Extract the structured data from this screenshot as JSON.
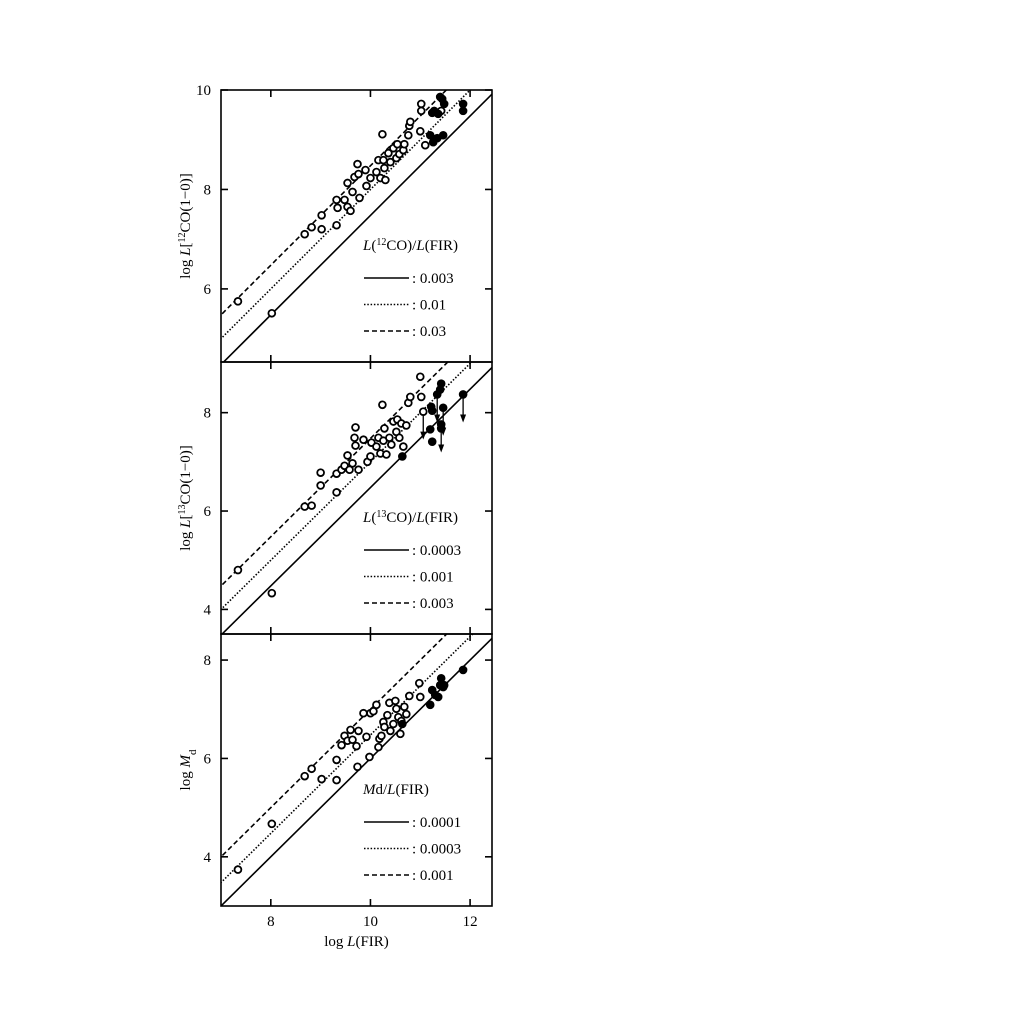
{
  "chart_data": [
    {
      "type": "scatter",
      "ylabel": [
        {
          "text": "log "
        },
        {
          "text": "L",
          "italic": true
        },
        {
          "text": "[",
          "italic": false
        },
        {
          "text": "12",
          "sup": true
        },
        {
          "text": "CO(1−0)]"
        }
      ],
      "xlim": [
        7,
        12.44
      ],
      "ylim": [
        4.53,
        10
      ],
      "xticks": [
        8,
        10,
        12
      ],
      "xtick_labels": false,
      "yticks": [
        6,
        8,
        10
      ],
      "legend_title": [
        {
          "text": "L",
          "italic": true
        },
        {
          "text": "("
        },
        {
          "text": "12",
          "sup": true
        },
        {
          "text": "CO)/"
        },
        {
          "text": "L",
          "italic": true
        },
        {
          "text": "(FIR)"
        }
      ],
      "lines": [
        {
          "value": 0.003,
          "label": ": 0.003",
          "dash": "solid"
        },
        {
          "value": 0.01,
          "label": ": 0.01",
          "dash": "dotted"
        },
        {
          "value": 0.03,
          "label": ": 0.03",
          "dash": "dashed"
        }
      ],
      "series": [
        {
          "filled": false,
          "x": [
            7.34,
            8.02,
            8.68,
            8.82,
            9.02,
            9.02,
            9.32,
            9.32,
            9.34,
            9.48,
            9.54,
            9.54,
            9.6,
            9.64,
            9.68,
            9.74,
            9.76,
            9.78,
            9.9,
            9.92,
            10.0,
            10.12,
            10.16,
            10.2,
            10.24,
            10.26,
            10.28,
            10.3,
            10.36,
            10.4,
            10.46,
            10.52,
            10.54,
            10.58,
            10.66,
            10.68,
            10.76,
            10.78,
            10.8,
            11.02,
            11.02,
            11.0,
            11.1,
            11.42
          ],
          "y": [
            5.75,
            5.51,
            7.1,
            7.24,
            7.48,
            7.2,
            7.28,
            7.79,
            7.63,
            7.79,
            8.13,
            7.65,
            7.57,
            7.95,
            8.25,
            8.51,
            8.31,
            7.83,
            8.39,
            8.07,
            8.23,
            8.35,
            8.59,
            8.23,
            9.11,
            8.59,
            8.43,
            8.19,
            8.73,
            8.55,
            8.83,
            8.63,
            8.91,
            8.71,
            8.79,
            8.91,
            9.09,
            9.28,
            9.36,
            9.72,
            9.58,
            9.17,
            8.89,
            9.58
          ]
        },
        {
          "filled": true,
          "x": [
            11.2,
            11.24,
            11.28,
            11.26,
            11.34,
            11.4,
            11.44,
            11.46,
            11.48,
            11.86,
            11.86,
            11.36
          ],
          "y": [
            9.09,
            9.54,
            9.58,
            8.95,
            9.03,
            9.86,
            9.82,
            9.09,
            9.72,
            9.72,
            9.58,
            9.52
          ]
        }
      ]
    },
    {
      "type": "scatter",
      "ylabel": [
        {
          "text": "log "
        },
        {
          "text": "L",
          "italic": true
        },
        {
          "text": "["
        },
        {
          "text": "13",
          "sup": true
        },
        {
          "text": "CO(1−0)]"
        }
      ],
      "xlim": [
        7,
        12.44
      ],
      "ylim": [
        3.5,
        9.03
      ],
      "xticks": [
        8,
        10,
        12
      ],
      "xtick_labels": false,
      "yticks": [
        4,
        6,
        8
      ],
      "legend_title": [
        {
          "text": "L",
          "italic": true
        },
        {
          "text": "("
        },
        {
          "text": "13",
          "sup": true
        },
        {
          "text": "CO)/"
        },
        {
          "text": "L",
          "italic": true
        },
        {
          "text": "(FIR)"
        }
      ],
      "lines": [
        {
          "value": 0.0003,
          "label": ": 0.0003",
          "dash": "solid"
        },
        {
          "value": 0.001,
          "label": ": 0.001",
          "dash": "dotted"
        },
        {
          "value": 0.003,
          "label": ": 0.003",
          "dash": "dashed"
        }
      ],
      "series": [
        {
          "filled": false,
          "x": [
            7.34,
            8.02,
            8.68,
            8.82,
            9.0,
            9.0,
            9.32,
            9.32,
            9.42,
            9.48,
            9.54,
            9.58,
            9.64,
            9.68,
            9.7,
            9.7,
            9.76,
            9.86,
            9.94,
            10.0,
            10.02,
            10.12,
            10.16,
            10.2,
            10.24,
            10.26,
            10.28,
            10.32,
            10.38,
            10.42,
            10.46,
            10.52,
            10.54,
            10.58,
            10.62,
            10.66,
            10.72,
            10.76,
            10.8,
            11.0,
            11.02,
            11.06
          ],
          "y": [
            4.8,
            4.33,
            6.09,
            6.11,
            6.52,
            6.78,
            6.38,
            6.76,
            6.84,
            6.92,
            7.13,
            6.84,
            6.97,
            7.49,
            7.7,
            7.33,
            6.84,
            7.45,
            7.0,
            7.11,
            7.39,
            7.31,
            7.49,
            7.17,
            8.16,
            7.43,
            7.68,
            7.15,
            7.49,
            7.35,
            7.82,
            7.61,
            7.86,
            7.49,
            7.78,
            7.31,
            7.74,
            8.2,
            8.32,
            8.73,
            8.32,
            8.02
          ],
          "upper_limit": [
            false,
            false,
            false,
            false,
            false,
            false,
            false,
            false,
            false,
            false,
            false,
            false,
            false,
            false,
            false,
            false,
            false,
            false,
            false,
            false,
            false,
            false,
            false,
            false,
            false,
            false,
            false,
            false,
            false,
            false,
            false,
            false,
            false,
            false,
            false,
            false,
            false,
            false,
            false,
            false,
            false,
            true
          ]
        },
        {
          "filled": true,
          "x": [
            10.64,
            11.2,
            11.22,
            11.24,
            11.24,
            11.34,
            11.4,
            11.42,
            11.42,
            11.46,
            11.42,
            11.86
          ],
          "y": [
            7.11,
            7.66,
            8.12,
            8.04,
            7.41,
            8.37,
            8.47,
            8.59,
            7.76,
            8.1,
            7.68,
            8.37
          ],
          "upper_limit": [
            false,
            false,
            false,
            false,
            false,
            true,
            false,
            false,
            true,
            true,
            false,
            true
          ]
        }
      ]
    },
    {
      "type": "scatter",
      "ylabel": [
        {
          "text": "log "
        },
        {
          "text": "M",
          "italic": true
        },
        {
          "text": "d",
          "sub": true
        }
      ],
      "xlabel": [
        {
          "text": "log  "
        },
        {
          "text": "L",
          "italic": true
        },
        {
          "text": "(FIR)"
        }
      ],
      "xlim": [
        7,
        12.44
      ],
      "ylim": [
        3.0,
        8.53
      ],
      "xticks": [
        8,
        10,
        12
      ],
      "xtick_labels": true,
      "yticks": [
        4,
        6,
        8
      ],
      "legend_title": [
        {
          "text": "M",
          "italic": true
        },
        {
          "text": "d/"
        },
        {
          "text": "L",
          "italic": true
        },
        {
          "text": "(FIR)"
        }
      ],
      "lines": [
        {
          "value": 0.0001,
          "label": ": 0.0001",
          "dash": "solid"
        },
        {
          "value": 0.0003,
          "label": ": 0.0003",
          "dash": "dotted"
        },
        {
          "value": 0.001,
          "label": ": 0.001",
          "dash": "dashed"
        }
      ],
      "series": [
        {
          "filled": false,
          "x": [
            7.34,
            8.02,
            8.68,
            8.82,
            9.02,
            9.32,
            9.32,
            9.42,
            9.48,
            9.54,
            9.6,
            9.64,
            9.72,
            9.74,
            9.76,
            9.86,
            9.92,
            9.98,
            10.0,
            10.06,
            10.12,
            10.16,
            10.18,
            10.22,
            10.26,
            10.28,
            10.34,
            10.38,
            10.4,
            10.46,
            10.5,
            10.52,
            10.56,
            10.6,
            10.62,
            10.68,
            10.72,
            10.78,
            10.98,
            11.0
          ],
          "y": [
            3.74,
            4.67,
            5.64,
            5.79,
            5.58,
            5.97,
            5.56,
            6.27,
            6.46,
            6.36,
            6.58,
            6.38,
            6.25,
            5.83,
            6.56,
            6.92,
            6.44,
            6.03,
            6.92,
            6.96,
            7.09,
            6.23,
            6.4,
            6.46,
            6.74,
            6.64,
            6.88,
            7.13,
            6.56,
            6.7,
            7.17,
            7.01,
            6.84,
            6.5,
            6.76,
            7.05,
            6.9,
            7.27,
            7.53,
            7.25
          ]
        },
        {
          "filled": true,
          "x": [
            10.64,
            11.2,
            11.24,
            11.3,
            11.36,
            11.4,
            11.42,
            11.46,
            11.48,
            11.86
          ],
          "y": [
            6.7,
            7.09,
            7.39,
            7.29,
            7.25,
            7.49,
            7.63,
            7.45,
            7.49,
            7.8
          ]
        }
      ]
    }
  ]
}
